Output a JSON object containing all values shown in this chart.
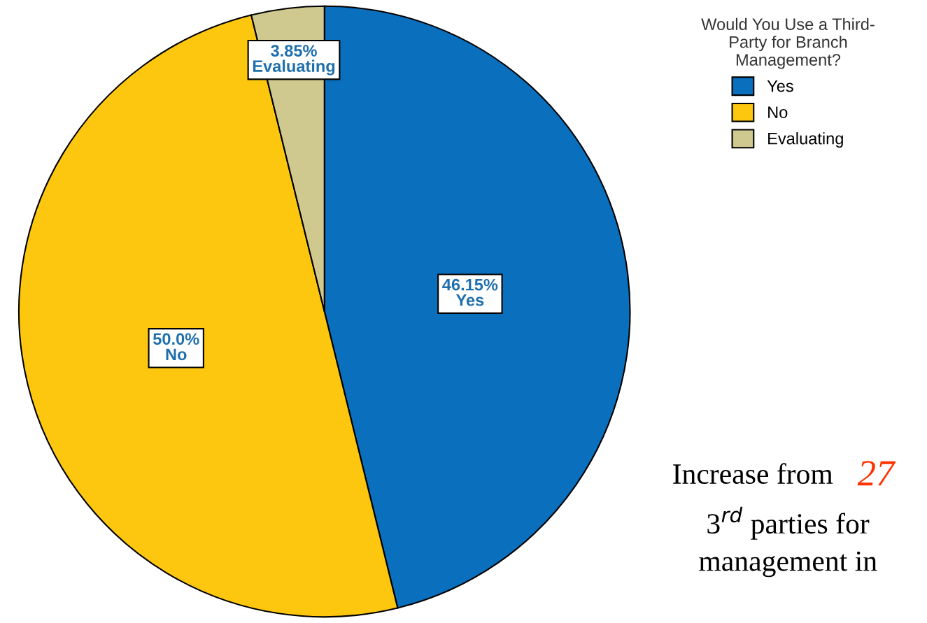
{
  "chart_data": {
    "type": "pie",
    "legend_title": "Would You Use a Third-\nParty for Branch\nManagement?",
    "categories": [
      "Yes",
      "No",
      "Evaluating"
    ],
    "values": [
      46.15,
      50.0,
      3.85
    ],
    "colors": [
      "#0a6fbd",
      "#fdc70f",
      "#cfc98f"
    ],
    "value_labels": [
      "46.15%",
      "50.0%",
      "3.85%"
    ],
    "legend": "top right",
    "annotations": [
      "Increase from",
      "27",
      "3$^{rd}$ parties for",
      "management in"
    ]
  }
}
